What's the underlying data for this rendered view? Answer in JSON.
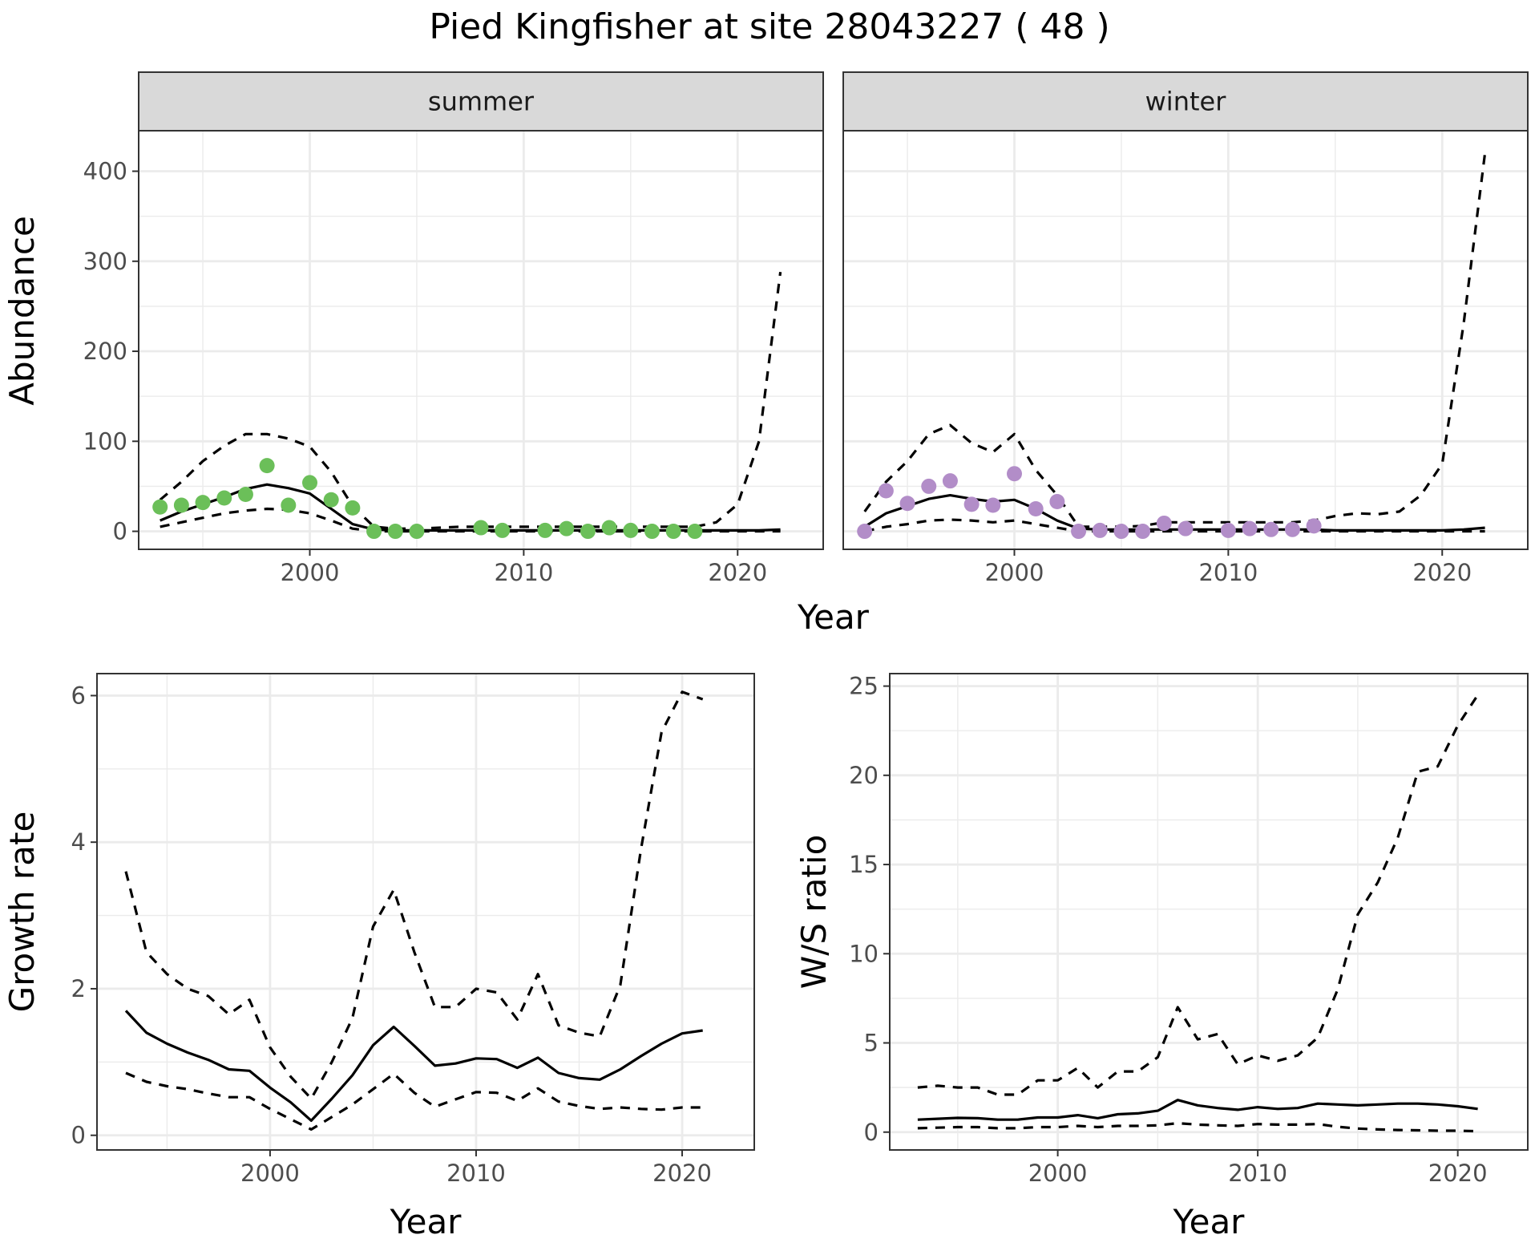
{
  "title": "Pied Kingfisher at site 28043227 ( 48 )",
  "colors": {
    "summer": "#6BBF59",
    "winter": "#B28DC8",
    "line": "#000000",
    "grid": "#EBEBEB",
    "strip": "#D9D9D9",
    "border": "#333333"
  },
  "chart_data": [
    {
      "type": "line",
      "title": "summer",
      "xlabel": "Year",
      "ylabel": "Abundance",
      "xlim": [
        1992,
        2024
      ],
      "ylim": [
        -20,
        445
      ],
      "xticks": [
        2000,
        2010,
        2020
      ],
      "yticks": [
        0,
        100,
        200,
        300,
        400
      ],
      "grid": true,
      "series": [
        {
          "style": "solid",
          "x": [
            1993,
            1994,
            1995,
            1996,
            1997,
            1998,
            1999,
            2000,
            2001,
            2002,
            2003,
            2004,
            2005,
            2006,
            2007,
            2008,
            2009,
            2010,
            2011,
            2012,
            2013,
            2014,
            2015,
            2016,
            2017,
            2018,
            2019,
            2020,
            2021,
            2022
          ],
          "y": [
            12,
            22,
            30,
            38,
            47,
            52,
            48,
            42,
            25,
            8,
            2,
            1,
            1,
            1,
            1,
            1,
            1,
            1,
            1,
            1,
            1,
            1,
            1,
            1,
            1,
            1,
            1,
            1,
            1,
            2
          ]
        },
        {
          "style": "dashed",
          "x": [
            1993,
            1994,
            1995,
            1996,
            1997,
            1998,
            1999,
            2000,
            2001,
            2002,
            2003,
            2004,
            2005,
            2006,
            2007,
            2008,
            2009,
            2010,
            2011,
            2012,
            2013,
            2014,
            2015,
            2016,
            2017,
            2018,
            2019,
            2020,
            2021,
            2022
          ],
          "y": [
            35,
            55,
            78,
            95,
            108,
            108,
            103,
            94,
            66,
            28,
            5,
            3,
            3,
            4,
            5,
            5,
            5,
            5,
            5,
            5,
            5,
            5,
            5,
            5,
            5,
            5,
            10,
            30,
            100,
            288
          ]
        },
        {
          "style": "dashed",
          "x": [
            1993,
            1994,
            1995,
            1996,
            1997,
            1998,
            1999,
            2000,
            2001,
            2002,
            2003,
            2004,
            2005,
            2006,
            2007,
            2008,
            2009,
            2010,
            2011,
            2012,
            2013,
            2014,
            2015,
            2016,
            2017,
            2018,
            2019,
            2020,
            2021,
            2022
          ],
          "y": [
            5,
            10,
            15,
            20,
            23,
            25,
            24,
            20,
            12,
            3,
            0,
            0,
            0,
            0,
            0,
            0,
            0,
            0,
            0,
            0,
            0,
            0,
            0,
            0,
            0,
            0,
            0,
            0,
            0,
            0
          ]
        },
        {
          "style": "points",
          "x": [
            1993,
            1994,
            1995,
            1996,
            1997,
            1998,
            1999,
            2000,
            2001,
            2002,
            2003,
            2004,
            2005,
            2008,
            2009,
            2011,
            2012,
            2013,
            2014,
            2015,
            2016,
            2017,
            2018
          ],
          "y": [
            27,
            29,
            32,
            37,
            41,
            73,
            29,
            54,
            35,
            26,
            0,
            0,
            0,
            4,
            1,
            1,
            3,
            0,
            4,
            1,
            0,
            0,
            0
          ]
        }
      ]
    },
    {
      "type": "line",
      "title": "winter",
      "xlabel": "Year",
      "ylabel": "Abundance",
      "xlim": [
        1992,
        2024
      ],
      "ylim": [
        -20,
        445
      ],
      "xticks": [
        2000,
        2010,
        2020
      ],
      "yticks": [
        0,
        100,
        200,
        300,
        400
      ],
      "grid": true,
      "series": [
        {
          "style": "solid",
          "x": [
            1993,
            1994,
            1995,
            1996,
            1997,
            1998,
            1999,
            2000,
            2001,
            2002,
            2003,
            2004,
            2005,
            2006,
            2007,
            2008,
            2009,
            2010,
            2011,
            2012,
            2013,
            2014,
            2015,
            2016,
            2017,
            2018,
            2019,
            2020,
            2021,
            2022
          ],
          "y": [
            5,
            20,
            28,
            36,
            40,
            36,
            33,
            35,
            25,
            12,
            3,
            2,
            2,
            2,
            2,
            2,
            2,
            2,
            2,
            2,
            2,
            2,
            1,
            1,
            1,
            1,
            1,
            1,
            2,
            4
          ]
        },
        {
          "style": "dashed",
          "x": [
            1993,
            1994,
            1995,
            1996,
            1997,
            1998,
            1999,
            2000,
            2001,
            2002,
            2003,
            2004,
            2005,
            2006,
            2007,
            2008,
            2009,
            2010,
            2011,
            2012,
            2013,
            2014,
            2015,
            2016,
            2017,
            2018,
            2019,
            2020,
            2021,
            2022
          ],
          "y": [
            22,
            55,
            78,
            108,
            118,
            98,
            88,
            108,
            68,
            40,
            5,
            5,
            5,
            6,
            10,
            10,
            10,
            10,
            10,
            10,
            10,
            12,
            17,
            20,
            19,
            22,
            40,
            75,
            230,
            420
          ]
        },
        {
          "style": "dashed",
          "x": [
            1993,
            1994,
            1995,
            1996,
            1997,
            1998,
            1999,
            2000,
            2001,
            2002,
            2003,
            2004,
            2005,
            2006,
            2007,
            2008,
            2009,
            2010,
            2011,
            2012,
            2013,
            2014,
            2015,
            2016,
            2017,
            2018,
            2019,
            2020,
            2021,
            2022
          ],
          "y": [
            0,
            5,
            8,
            12,
            13,
            12,
            10,
            12,
            8,
            4,
            0,
            0,
            0,
            0,
            0,
            0,
            0,
            0,
            0,
            0,
            0,
            0,
            0,
            0,
            0,
            0,
            0,
            0,
            0,
            0
          ]
        },
        {
          "style": "points",
          "x": [
            1993,
            1994,
            1995,
            1996,
            1997,
            1998,
            1999,
            2000,
            2001,
            2002,
            2003,
            2004,
            2005,
            2006,
            2007,
            2008,
            2010,
            2011,
            2012,
            2013,
            2014
          ],
          "y": [
            0,
            45,
            31,
            50,
            56,
            30,
            29,
            64,
            25,
            33,
            0,
            1,
            0,
            0,
            9,
            3,
            1,
            3,
            2,
            2,
            6
          ]
        }
      ]
    },
    {
      "type": "line",
      "title": "",
      "xlabel": "Year",
      "ylabel": "Growth rate",
      "xlim": [
        1991.6,
        2023.5
      ],
      "ylim": [
        -0.2,
        6.3
      ],
      "xticks": [
        2000,
        2010,
        2020
      ],
      "yticks": [
        0,
        2,
        4,
        6
      ],
      "grid": true,
      "series": [
        {
          "style": "solid",
          "x": [
            1993,
            1994,
            1995,
            1996,
            1997,
            1998,
            1999,
            2000,
            2001,
            2002,
            2003,
            2004,
            2005,
            2006,
            2007,
            2008,
            2009,
            2010,
            2011,
            2012,
            2013,
            2014,
            2015,
            2016,
            2017,
            2018,
            2019,
            2020,
            2021
          ],
          "y": [
            1.7,
            1.4,
            1.25,
            1.13,
            1.03,
            0.9,
            0.88,
            0.65,
            0.45,
            0.2,
            0.5,
            0.82,
            1.23,
            1.48,
            1.22,
            0.95,
            0.98,
            1.05,
            1.04,
            0.92,
            1.06,
            0.85,
            0.78,
            0.76,
            0.9,
            1.08,
            1.25,
            1.39,
            1.43
          ]
        },
        {
          "style": "dashed",
          "x": [
            1993,
            1994,
            1995,
            1996,
            1997,
            1998,
            1999,
            2000,
            2001,
            2002,
            2003,
            2004,
            2005,
            2006,
            2007,
            2008,
            2009,
            2010,
            2011,
            2012,
            2013,
            2014,
            2015,
            2016,
            2017,
            2018,
            2019,
            2020,
            2021
          ],
          "y": [
            3.6,
            2.5,
            2.2,
            2.0,
            1.9,
            1.65,
            1.85,
            1.2,
            0.8,
            0.5,
            1.0,
            1.6,
            2.85,
            3.35,
            2.5,
            1.75,
            1.75,
            2.0,
            1.95,
            1.58,
            2.2,
            1.5,
            1.4,
            1.35,
            2.05,
            3.9,
            5.5,
            6.05,
            5.95
          ]
        },
        {
          "style": "dashed",
          "x": [
            1993,
            1994,
            1995,
            1996,
            1997,
            1998,
            1999,
            2000,
            2001,
            2002,
            2003,
            2004,
            2005,
            2006,
            2007,
            2008,
            2009,
            2010,
            2011,
            2012,
            2013,
            2014,
            2015,
            2016,
            2017,
            2018,
            2019,
            2020,
            2021
          ],
          "y": [
            0.85,
            0.73,
            0.67,
            0.63,
            0.57,
            0.52,
            0.52,
            0.36,
            0.22,
            0.08,
            0.25,
            0.42,
            0.63,
            0.84,
            0.58,
            0.39,
            0.49,
            0.59,
            0.58,
            0.47,
            0.64,
            0.46,
            0.4,
            0.36,
            0.38,
            0.36,
            0.35,
            0.38,
            0.38
          ]
        }
      ]
    },
    {
      "type": "line",
      "title": "",
      "xlabel": "Year",
      "ylabel": "W/S ratio",
      "xlim": [
        1991.6,
        2023.5
      ],
      "ylim": [
        -1.0,
        25.7
      ],
      "xticks": [
        2000,
        2010,
        2020
      ],
      "yticks": [
        0,
        5,
        10,
        15,
        20,
        25
      ],
      "grid": true,
      "series": [
        {
          "style": "solid",
          "x": [
            1993,
            1994,
            1995,
            1996,
            1997,
            1998,
            1999,
            2000,
            2001,
            2002,
            2003,
            2004,
            2005,
            2006,
            2007,
            2008,
            2009,
            2010,
            2011,
            2012,
            2013,
            2014,
            2015,
            2016,
            2017,
            2018,
            2019,
            2020,
            2021
          ],
          "y": [
            0.7,
            0.75,
            0.8,
            0.78,
            0.7,
            0.7,
            0.82,
            0.82,
            0.95,
            0.78,
            1.0,
            1.05,
            1.2,
            1.8,
            1.5,
            1.35,
            1.25,
            1.4,
            1.3,
            1.35,
            1.6,
            1.55,
            1.5,
            1.55,
            1.6,
            1.6,
            1.55,
            1.45,
            1.3
          ]
        },
        {
          "style": "dashed",
          "x": [
            1993,
            1994,
            1995,
            1996,
            1997,
            1998,
            1999,
            2000,
            2001,
            2002,
            2003,
            2004,
            2005,
            2006,
            2007,
            2008,
            2009,
            2010,
            2011,
            2012,
            2013,
            2014,
            2015,
            2016,
            2017,
            2018,
            2019,
            2020,
            2021
          ],
          "y": [
            2.5,
            2.6,
            2.5,
            2.5,
            2.1,
            2.1,
            2.9,
            2.9,
            3.6,
            2.5,
            3.4,
            3.4,
            4.2,
            7.0,
            5.2,
            5.5,
            3.8,
            4.3,
            4.0,
            4.3,
            5.3,
            8.0,
            12.2,
            14.0,
            16.5,
            20.2,
            20.5,
            22.8,
            24.5
          ]
        },
        {
          "style": "dashed",
          "x": [
            1993,
            1994,
            1995,
            1996,
            1997,
            1998,
            1999,
            2000,
            2001,
            2002,
            2003,
            2004,
            2005,
            2006,
            2007,
            2008,
            2009,
            2010,
            2011,
            2012,
            2013,
            2014,
            2015,
            2016,
            2017,
            2018,
            2019,
            2020,
            2021
          ],
          "y": [
            0.22,
            0.25,
            0.28,
            0.28,
            0.22,
            0.22,
            0.28,
            0.28,
            0.35,
            0.28,
            0.35,
            0.35,
            0.38,
            0.5,
            0.42,
            0.38,
            0.35,
            0.45,
            0.42,
            0.42,
            0.45,
            0.3,
            0.2,
            0.15,
            0.12,
            0.1,
            0.08,
            0.08,
            0.05
          ]
        }
      ]
    }
  ]
}
